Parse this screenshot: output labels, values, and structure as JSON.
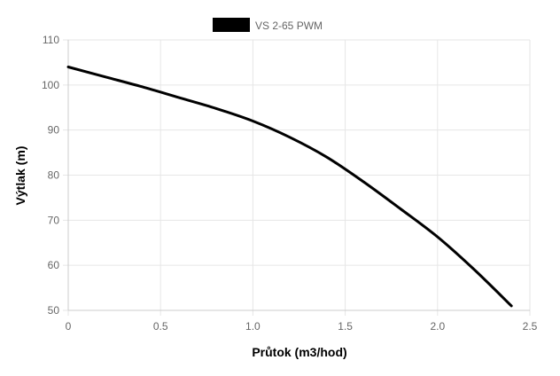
{
  "chart_data": {
    "type": "line",
    "xlabel": "Průtok (m3/hod)",
    "ylabel": "Výtlak (m)",
    "xlim": [
      0,
      2.5
    ],
    "ylim": [
      50,
      110
    ],
    "x_ticks": [
      "0",
      "0.5",
      "1.0",
      "1.5",
      "2.0",
      "2.5"
    ],
    "y_ticks": [
      "50",
      "60",
      "70",
      "80",
      "90",
      "100",
      "110"
    ],
    "grid": true,
    "legend": "top-center",
    "series": [
      {
        "name": "VS 2-65 PWM",
        "color": "#000000",
        "x": [
          0,
          0.2,
          0.4,
          0.6,
          0.8,
          1.0,
          1.2,
          1.4,
          1.6,
          1.8,
          2.0,
          2.2,
          2.4
        ],
        "y": [
          104,
          101.8,
          99.6,
          97.2,
          94.8,
          92,
          88.4,
          84,
          78.5,
          72.5,
          66.3,
          59,
          51
        ]
      }
    ]
  }
}
